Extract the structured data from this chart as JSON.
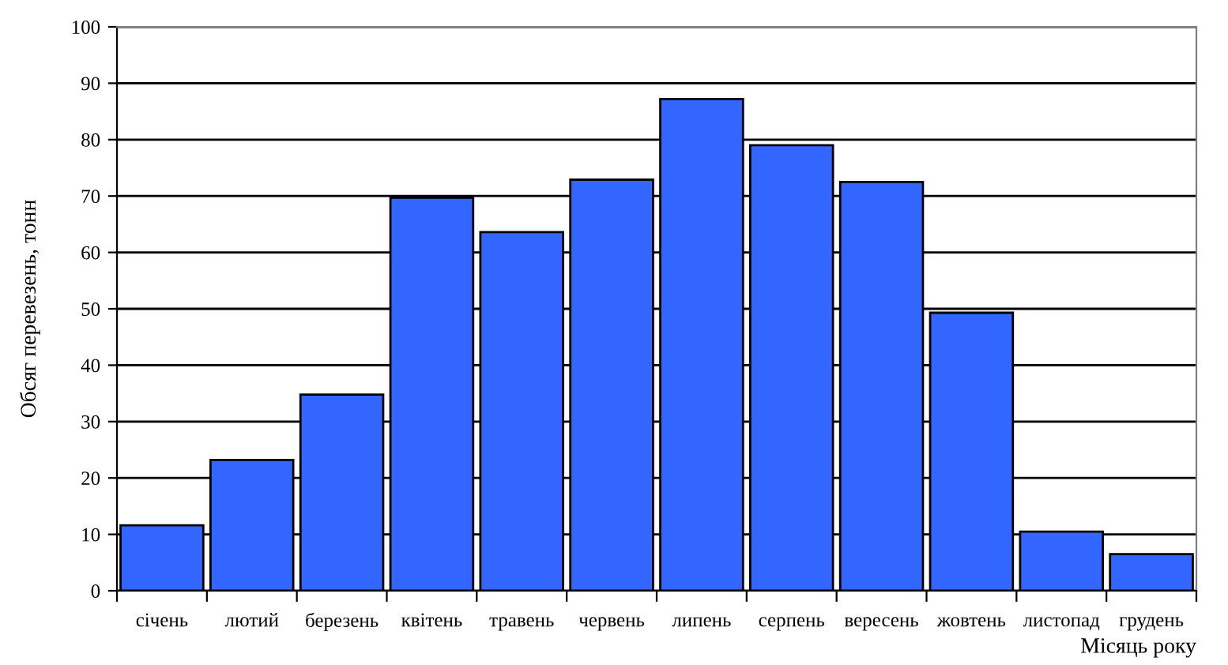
{
  "chart_data": {
    "type": "bar",
    "xlabel": "Місяць року",
    "ylabel": "Обсяг перевезень, тонн",
    "categories": [
      "січень",
      "лютий",
      "березень",
      "квітень",
      "травень",
      "червень",
      "липень",
      "серпень",
      "вересень",
      "жовтень",
      "листопад",
      "грудень"
    ],
    "values": [
      11.6,
      23.2,
      34.8,
      69.7,
      63.6,
      72.9,
      87.2,
      79.0,
      72.5,
      49.3,
      10.5,
      6.5
    ],
    "color": "#3366ff",
    "ylim": [
      0,
      100
    ],
    "yticks": [
      0,
      10,
      20,
      30,
      40,
      50,
      60,
      70,
      80,
      90,
      100
    ],
    "grid": "y",
    "legend": false
  }
}
